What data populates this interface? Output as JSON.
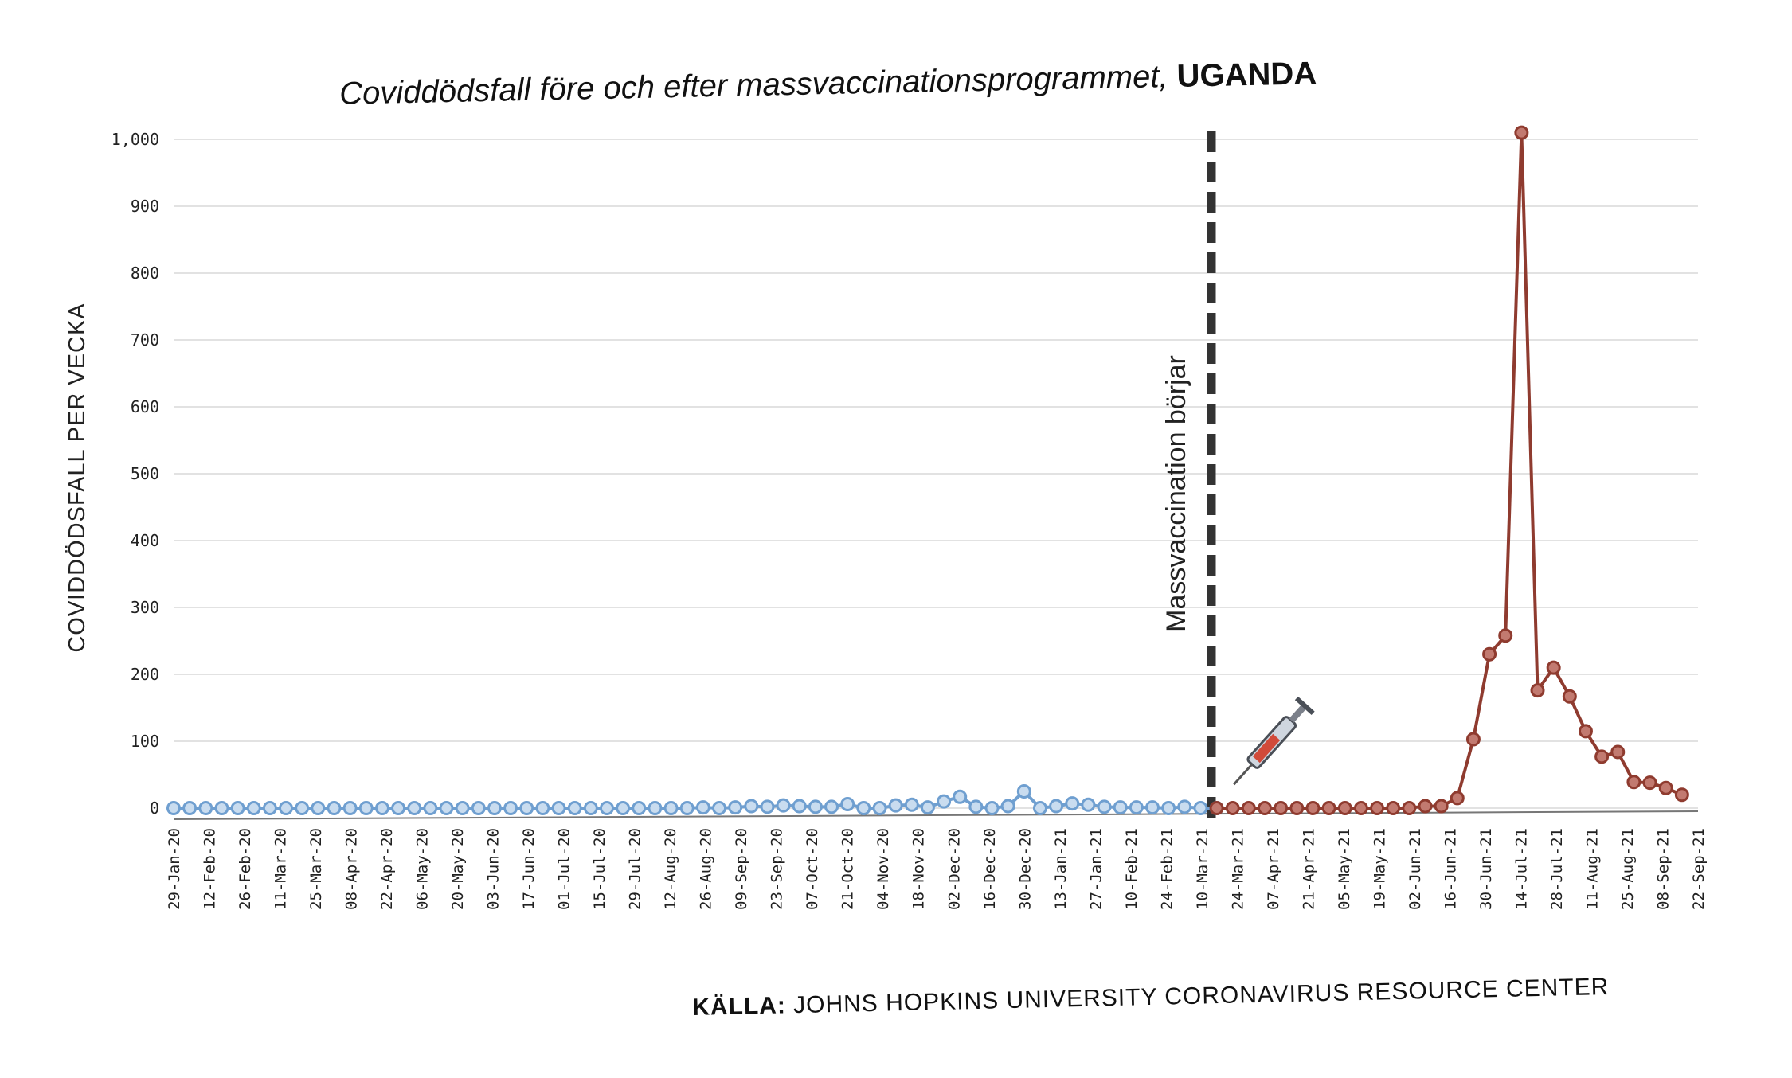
{
  "chart_data": {
    "type": "line",
    "title_main": "Coviddödsfall före och efter massvaccinationsprogrammet, ",
    "title_country": "UGANDA",
    "ylabel": "COVIDDÖDSFALL PER VECKA",
    "ylim": [
      0,
      1000
    ],
    "yticks": [
      "0",
      "100",
      "200",
      "300",
      "400",
      "500",
      "600",
      "700",
      "800",
      "900",
      "1,000"
    ],
    "ytick_values": [
      0,
      100,
      200,
      300,
      400,
      500,
      600,
      700,
      800,
      900,
      1000
    ],
    "grid": true,
    "xtick_labels": [
      "29-Jan-20",
      "12-Feb-20",
      "26-Feb-20",
      "11-Mar-20",
      "25-Mar-20",
      "08-Apr-20",
      "22-Apr-20",
      "06-May-20",
      "20-May-20",
      "03-Jun-20",
      "17-Jun-20",
      "01-Jul-20",
      "15-Jul-20",
      "29-Jul-20",
      "12-Aug-20",
      "26-Aug-20",
      "09-Sep-20",
      "23-Sep-20",
      "07-Oct-20",
      "21-Oct-20",
      "04-Nov-20",
      "18-Nov-20",
      "02-Dec-20",
      "16-Dec-20",
      "30-Dec-20",
      "13-Jan-21",
      "27-Jan-21",
      "10-Feb-21",
      "24-Feb-21",
      "10-Mar-21",
      "24-Mar-21",
      "07-Apr-21",
      "21-Apr-21",
      "05-May-21",
      "19-May-21",
      "02-Jun-21",
      "16-Jun-21",
      "30-Jun-21",
      "14-Jul-21",
      "28-Jul-21",
      "11-Aug-21",
      "25-Aug-21",
      "08-Sep-21",
      "22-Sep-21"
    ],
    "series": [
      {
        "color": "#6f9fd0",
        "marker_fill": "#bcd3ea",
        "values": [
          0,
          0,
          0,
          0,
          0,
          0,
          0,
          0,
          0,
          0,
          0,
          0,
          0,
          0,
          0,
          0,
          0,
          0,
          0,
          0,
          0,
          0,
          0,
          0,
          0,
          0,
          0,
          0,
          0,
          0,
          0,
          0,
          0,
          0,
          0,
          0,
          0,
          0,
          0,
          0,
          0,
          0,
          0,
          0,
          0,
          0,
          0,
          0,
          0,
          0,
          0,
          0,
          0,
          0,
          0,
          0,
          0,
          0,
          0,
          0,
          0,
          0,
          0,
          1,
          2,
          3,
          2,
          3,
          5,
          2,
          3,
          5,
          8,
          3,
          0,
          2,
          8,
          6,
          5,
          3,
          9,
          17,
          12,
          15,
          5,
          10,
          25,
          32,
          8,
          4,
          2,
          1,
          1,
          2,
          8,
          10,
          7,
          9,
          5,
          12,
          22,
          20,
          10,
          12,
          16,
          30,
          34,
          12,
          8,
          5,
          2,
          5,
          2,
          22,
          28,
          36,
          12,
          20,
          15,
          22,
          28,
          42,
          20,
          12,
          6,
          5,
          6,
          12,
          18,
          20,
          10,
          8,
          6,
          8,
          4,
          2,
          5,
          3,
          2,
          1,
          2,
          3,
          2,
          4,
          5,
          3,
          2,
          1,
          2,
          1,
          3,
          2,
          4,
          5,
          3,
          2,
          1,
          2,
          3,
          2,
          1,
          2,
          3,
          1,
          2,
          3,
          5,
          4,
          3,
          2,
          3,
          2,
          4,
          3,
          5,
          4,
          7,
          3,
          2,
          4,
          5,
          3,
          2,
          1,
          2,
          3,
          2,
          1,
          3,
          2,
          4,
          6,
          3,
          2,
          3,
          2,
          1,
          2,
          2,
          3,
          1
        ]
      }
    ]
  },
  "series_points": {
    "pre_vaccination": {
      "color": "#6f9fd0",
      "marker_fill": "#c9dcef",
      "values": [
        0,
        0,
        0,
        0,
        0,
        0,
        0,
        0,
        0,
        0,
        0,
        0,
        0,
        0,
        0,
        0,
        0,
        0,
        0,
        0,
        0,
        0,
        1,
        0,
        1,
        0,
        1,
        2,
        3,
        4,
        4,
        6,
        7,
        8,
        9,
        10,
        12,
        14,
        11,
        13,
        15,
        17,
        20,
        22,
        25,
        28,
        32,
        30,
        26,
        20,
        15,
        12,
        8,
        6,
        4,
        3,
        2
      ]
    },
    "post_vaccination": {
      "color": "#8f3b2f",
      "marker_fill": "#c27a70",
      "values": []
    }
  },
  "annotation": {
    "text": "Massvaccination börjar",
    "at_label": "10-Mar-21"
  },
  "source": {
    "label": "KÄLLA:",
    "text": " JOHNS HOPKINS UNIVERSITY CORONAVIRUS RESOURCE CENTER"
  }
}
